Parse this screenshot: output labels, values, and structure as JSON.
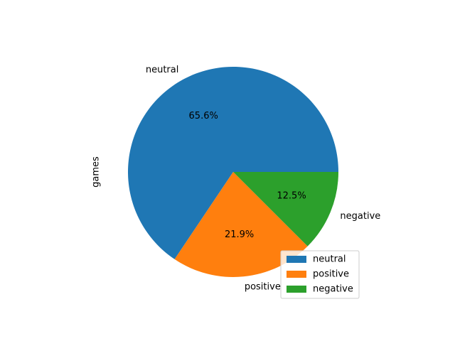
{
  "chart_data": {
    "type": "pie",
    "ylabel": "games",
    "slices": [
      {
        "label": "neutral",
        "value": 65.6,
        "pct_label": "65.6%",
        "color": "#1f77b4"
      },
      {
        "label": "positive",
        "value": 21.9,
        "pct_label": "21.9%",
        "color": "#ff7f0e"
      },
      {
        "label": "negative",
        "value": 12.5,
        "pct_label": "12.5%",
        "color": "#2ca02c"
      }
    ],
    "legend": {
      "placement": "lower-right",
      "entries": [
        "neutral",
        "positive",
        "negative"
      ]
    }
  }
}
